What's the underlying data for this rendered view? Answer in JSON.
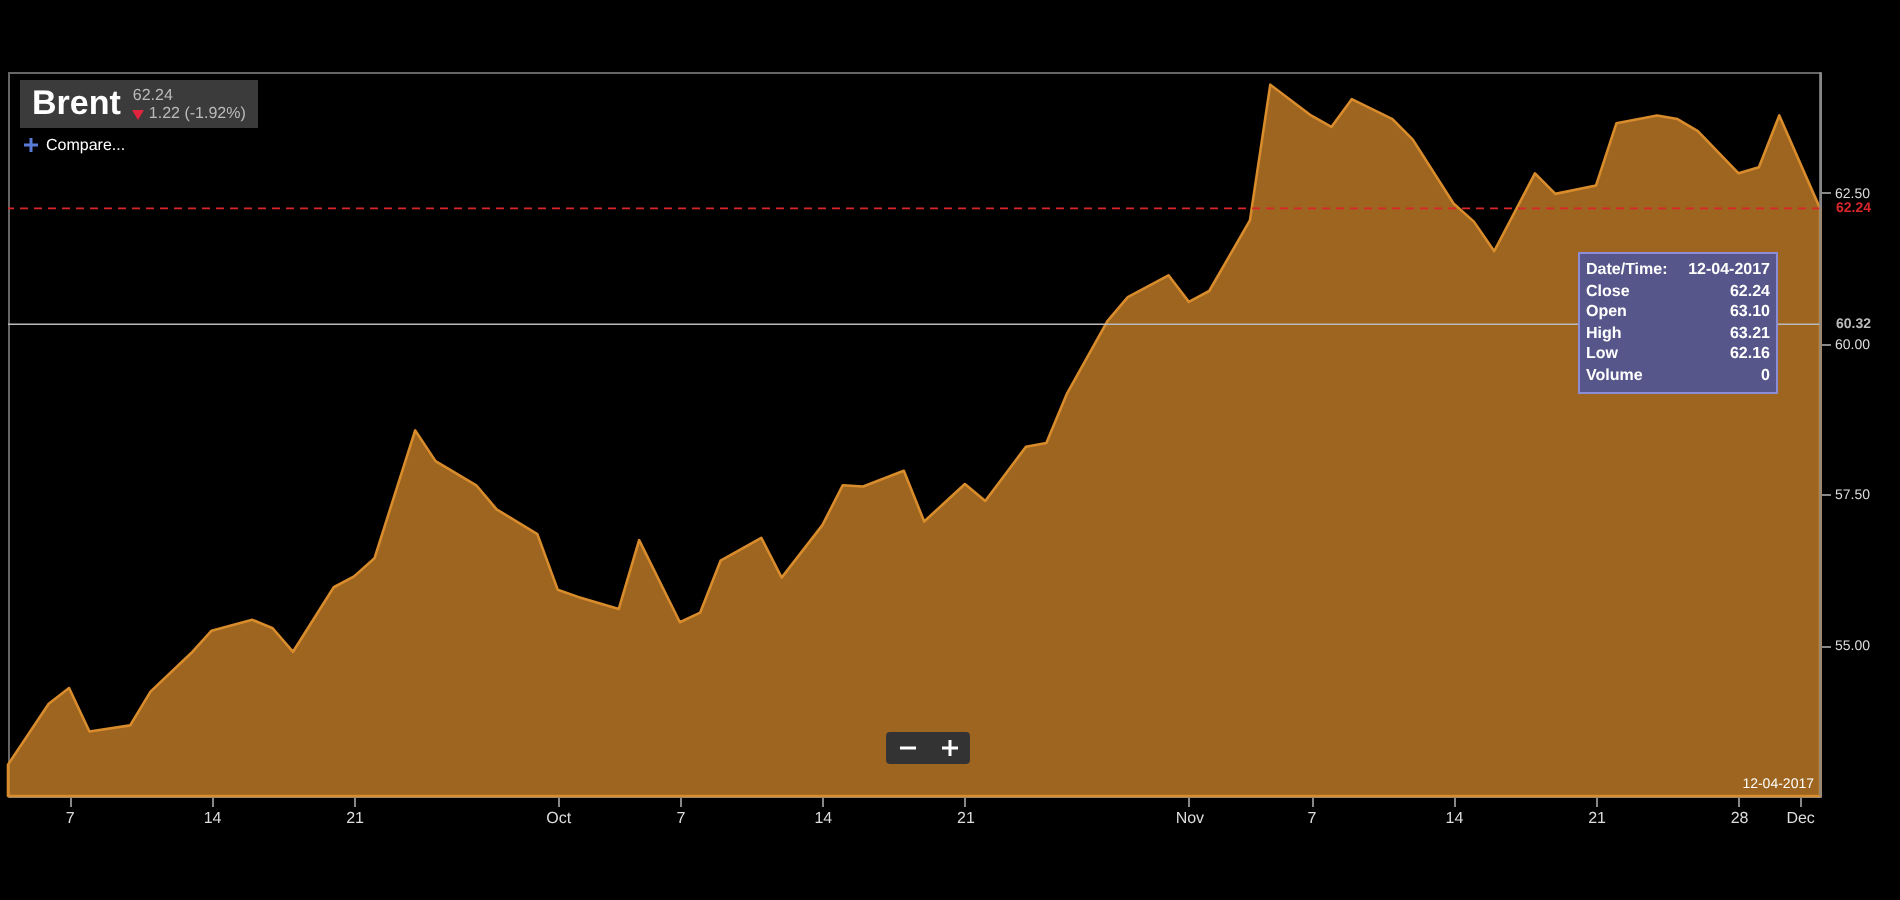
{
  "chart_data": {
    "type": "area",
    "title": "Brent",
    "annotations": [
      "62.24",
      "1.22 (-1.92%)",
      "Compare...",
      "Date/Time: 12-04-2017",
      "Close 62.24",
      "Open 63.10",
      "High 63.21",
      "Low 62.16",
      "Volume 0"
    ],
    "x": [
      "2017-09-04",
      "2017-09-06",
      "2017-09-07",
      "2017-09-08",
      "2017-09-10",
      "2017-09-11",
      "2017-09-13",
      "2017-09-14",
      "2017-09-16",
      "2017-09-17",
      "2017-09-18",
      "2017-09-20",
      "2017-09-21",
      "2017-09-22",
      "2017-09-24",
      "2017-09-25",
      "2017-09-27",
      "2017-09-28",
      "2017-09-30",
      "2017-10-01",
      "2017-10-02",
      "2017-10-04",
      "2017-10-05",
      "2017-10-07",
      "2017-10-08",
      "2017-10-09",
      "2017-10-11",
      "2017-10-12",
      "2017-10-14",
      "2017-10-15",
      "2017-10-16",
      "2017-10-18",
      "2017-10-19",
      "2017-10-21",
      "2017-10-22",
      "2017-10-24",
      "2017-10-25",
      "2017-10-26",
      "2017-10-28",
      "2017-10-29",
      "2017-10-31",
      "2017-11-01",
      "2017-11-02",
      "2017-11-04",
      "2017-11-05",
      "2017-11-07",
      "2017-11-08",
      "2017-11-09",
      "2017-11-11",
      "2017-11-12",
      "2017-11-14",
      "2017-11-15",
      "2017-11-16",
      "2017-11-18",
      "2017-11-19",
      "2017-11-21",
      "2017-11-22",
      "2017-11-24",
      "2017-11-25",
      "2017-11-26",
      "2017-11-28",
      "2017-11-29",
      "2017-11-30",
      "2017-12-02"
    ],
    "series": [
      {
        "color": "#d98c2b",
        "values": [
          53.02,
          54.03,
          54.29,
          53.57,
          53.67,
          54.23,
          54.87,
          55.24,
          55.42,
          55.28,
          54.89,
          55.96,
          56.14,
          56.44,
          58.56,
          58.05,
          57.65,
          57.25,
          56.84,
          55.92,
          55.8,
          55.6,
          56.74,
          55.38,
          55.54,
          56.4,
          56.78,
          56.12,
          56.99,
          57.65,
          57.63,
          57.89,
          57.05,
          57.67,
          57.39,
          58.29,
          58.35,
          59.16,
          60.37,
          60.77,
          61.13,
          60.69,
          60.87,
          62.04,
          64.29,
          63.78,
          63.59,
          64.05,
          63.72,
          63.38,
          62.32,
          62.02,
          61.53,
          62.82,
          62.48,
          62.62,
          63.65,
          63.78,
          63.72,
          63.52,
          62.82,
          62.92,
          63.78,
          62.24
        ]
      }
    ],
    "xlim": [
      "2017-09-04",
      "2017-12-02"
    ],
    "xticks": [
      {
        "value": "2017-09-07",
        "label": "7"
      },
      {
        "value": "2017-09-14",
        "label": "14"
      },
      {
        "value": "2017-09-21",
        "label": "21"
      },
      {
        "value": "2017-10-01",
        "label": "Oct"
      },
      {
        "value": "2017-10-07",
        "label": "7"
      },
      {
        "value": "2017-10-14",
        "label": "14"
      },
      {
        "value": "2017-10-21",
        "label": "21"
      },
      {
        "value": "2017-11-01",
        "label": "Nov"
      },
      {
        "value": "2017-11-07",
        "label": "7"
      },
      {
        "value": "2017-11-14",
        "label": "14"
      },
      {
        "value": "2017-11-21",
        "label": "21"
      },
      {
        "value": "2017-11-28",
        "label": "28"
      },
      {
        "value": "2017-12-01",
        "label": "Dec"
      }
    ],
    "ylim": [
      52.5,
      64.5
    ],
    "yticks": [
      {
        "value": 55,
        "label": "55.00"
      },
      {
        "value": 57.5,
        "label": "57.50"
      },
      {
        "value": 60,
        "label": "60.00"
      },
      {
        "value": 62.5,
        "label": "62.50"
      }
    ],
    "ref_lines": [
      {
        "axis": "y",
        "value": 62.24,
        "label": "62.24",
        "color": "#d9262b",
        "line_style": "dashed"
      },
      {
        "axis": "y",
        "value": 60.32,
        "label": "60.32",
        "color": "#bbbbbb",
        "line_style": "solid"
      },
      {
        "axis": "x",
        "value": "2017-12-02",
        "label": "12-04-2017",
        "color": "#888888",
        "line_style": "solid"
      }
    ]
  }
}
